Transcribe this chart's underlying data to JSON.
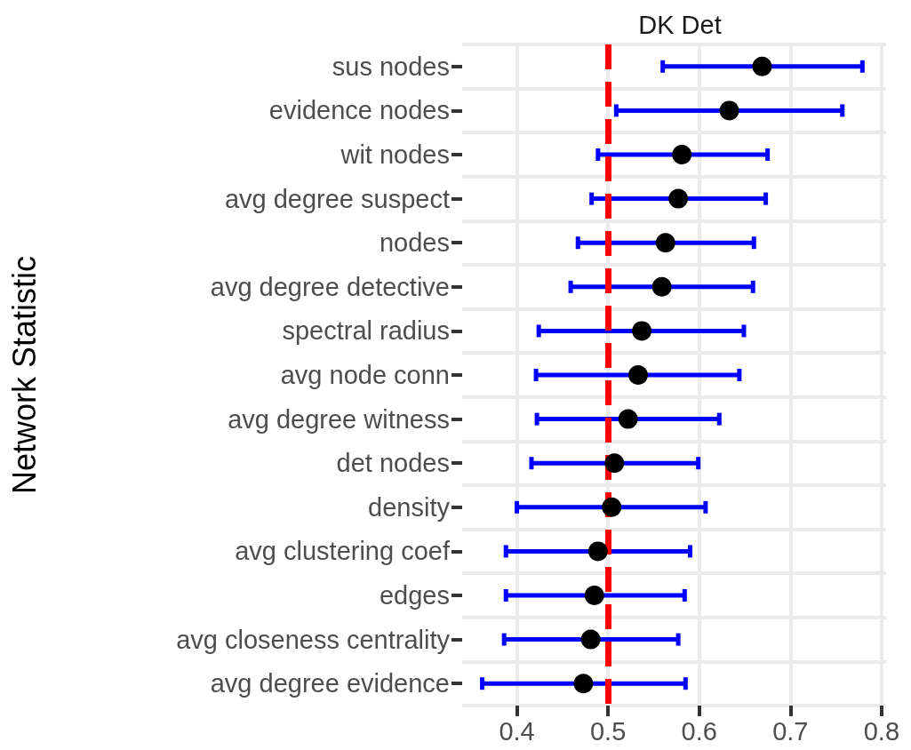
{
  "chart_data": {
    "type": "scatter",
    "title": "DK Det",
    "ylabel": "Network Statistic",
    "orientation": "horizontal",
    "categories": [
      "sus nodes",
      "evidence nodes",
      "wit nodes",
      "avg degree suspect",
      "nodes",
      "avg degree detective",
      "spectral radius",
      "avg node conn",
      "avg degree witness",
      "det nodes",
      "density",
      "avg clustering coef",
      "edges",
      "avg closeness centrality",
      "avg degree evidence"
    ],
    "series": [
      {
        "color": "#0000ff",
        "colors": [
          "#000000",
          "#000000",
          "#000000",
          "#000000",
          "#000000",
          "#000000",
          "#000000",
          "#000000",
          "#000000",
          "#000000",
          "#000000",
          "#000000",
          "#000000",
          "#000000",
          "#000000"
        ],
        "values": [
          0.669,
          0.633,
          0.581,
          0.577,
          0.563,
          0.559,
          0.537,
          0.533,
          0.522,
          0.507,
          0.504,
          0.489,
          0.485,
          0.481,
          0.473
        ],
        "errors": [
          [
            0.56,
            0.779
          ],
          [
            0.509,
            0.757
          ],
          [
            0.489,
            0.675
          ],
          [
            0.482,
            0.673
          ],
          [
            0.467,
            0.66
          ],
          [
            0.459,
            0.659
          ],
          [
            0.424,
            0.649
          ],
          [
            0.421,
            0.644
          ],
          [
            0.422,
            0.622
          ],
          [
            0.416,
            0.599
          ],
          [
            0.4,
            0.607
          ],
          [
            0.388,
            0.59
          ],
          [
            0.388,
            0.584
          ],
          [
            0.386,
            0.577
          ],
          [
            0.362,
            0.585
          ]
        ]
      }
    ],
    "xlim": [
      0.34,
      0.805
    ],
    "xticks": [
      0.4,
      0.5,
      0.6,
      0.7,
      0.8
    ],
    "ref_lines": [
      {
        "axis": "x",
        "value": 0.5,
        "color": "#ff0000",
        "line_style": "dashed"
      }
    ],
    "grid": true,
    "marker": "circle"
  }
}
